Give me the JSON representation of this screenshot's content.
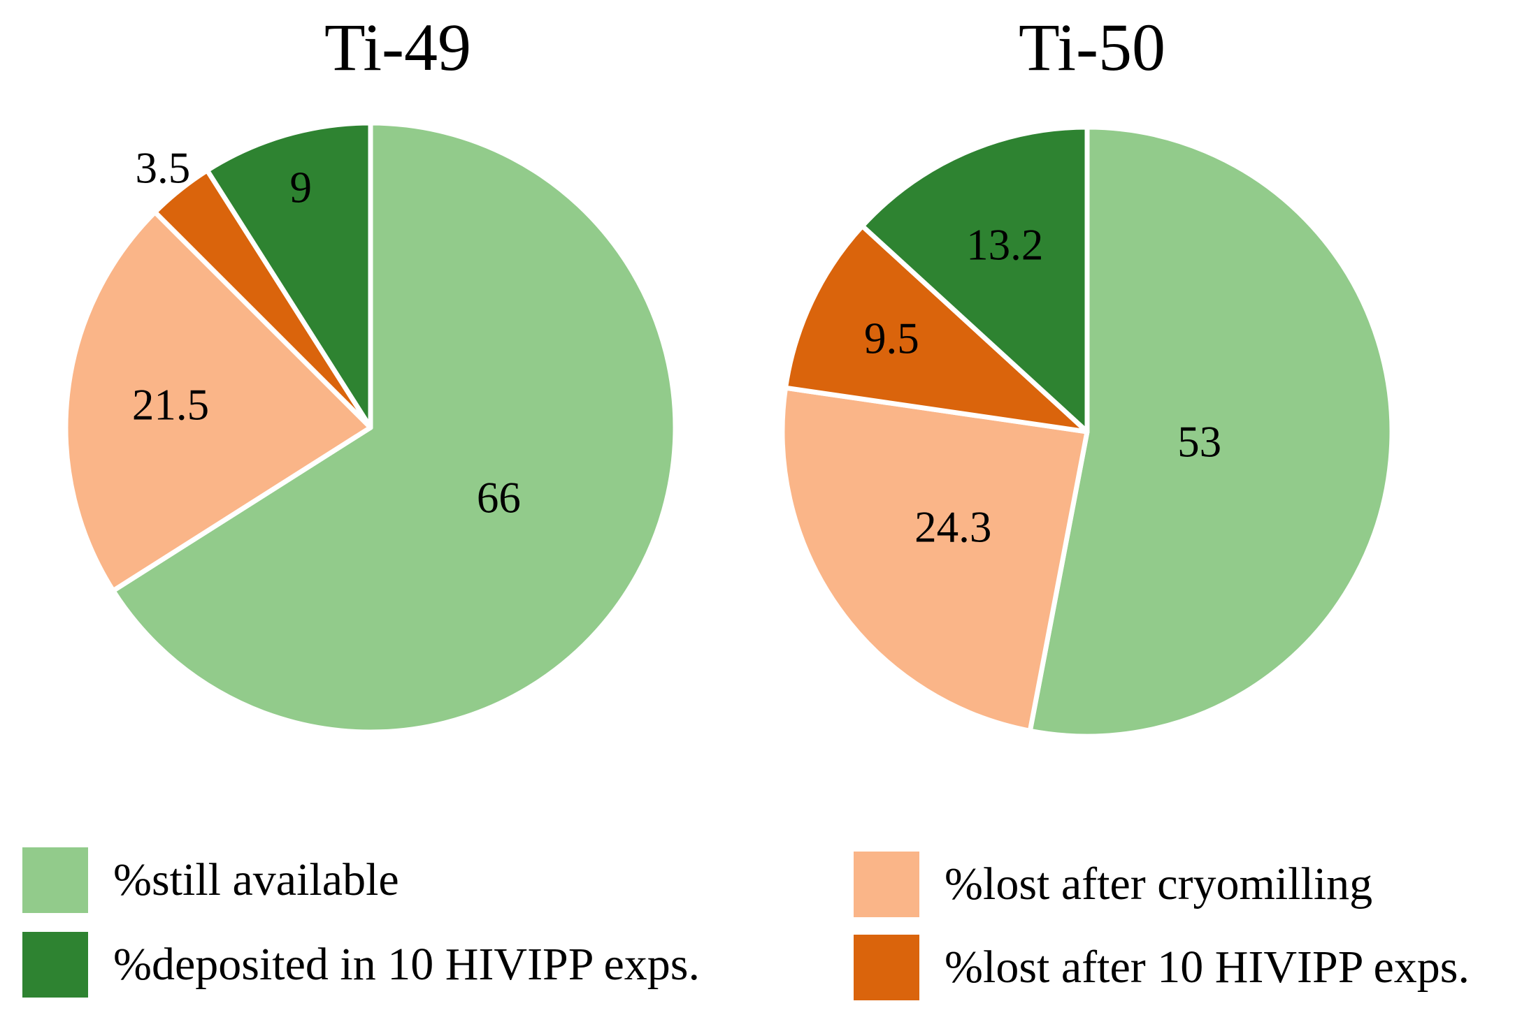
{
  "colors": {
    "light_green": "#92cb8b",
    "dark_green": "#2e8331",
    "peach": "#fab588",
    "dark_orange": "#da640c",
    "slice_divider": "#ffffff",
    "text": "#000000",
    "background": "#ffffff"
  },
  "chart_data": [
    {
      "type": "pie",
      "title": "Ti-49",
      "start_angle_deg_from_top": 0,
      "direction": "clockwise",
      "total": 100,
      "slices": [
        {
          "name": "%still available",
          "value": 66,
          "display": "66",
          "color_key": "light_green",
          "label_radius_frac": 0.48
        },
        {
          "name": "%lost after cryomilling",
          "value": 21.5,
          "display": "21.5",
          "color_key": "peach",
          "label_radius_frac": 0.66
        },
        {
          "name": "%lost after 10 HIVIPP exps.",
          "value": 3.5,
          "display": "3.5",
          "color_key": "dark_orange",
          "label_radius_frac": 1.09
        },
        {
          "name": "%deposited in 10 HIVIPP exps.",
          "value": 9,
          "display": "9",
          "color_key": "dark_green",
          "label_radius_frac": 0.82
        }
      ]
    },
    {
      "type": "pie",
      "title": "Ti-50",
      "start_angle_deg_from_top": 0,
      "direction": "clockwise",
      "total": 100,
      "slices": [
        {
          "name": "%still available",
          "value": 53,
          "display": "53",
          "color_key": "light_green",
          "label_radius_frac": 0.37
        },
        {
          "name": "%lost after cryomilling",
          "value": 24.3,
          "display": "24.3",
          "color_key": "peach",
          "label_radius_frac": 0.54
        },
        {
          "name": "%lost after 10 HIVIPP exps.",
          "value": 9.5,
          "display": "9.5",
          "color_key": "dark_orange",
          "label_radius_frac": 0.71
        },
        {
          "name": "%deposited in 10 HIVIPP exps.",
          "value": 13.2,
          "display": "13.2",
          "color_key": "dark_green",
          "label_radius_frac": 0.67
        }
      ]
    }
  ],
  "legend": {
    "items": [
      {
        "color_key": "light_green",
        "label": "%still available"
      },
      {
        "color_key": "dark_green",
        "label": "%deposited in 10 HIVIPP exps."
      },
      {
        "color_key": "peach",
        "label": "%lost after cryomilling"
      },
      {
        "color_key": "dark_orange",
        "label": "%lost after 10 HIVIPP exps."
      }
    ]
  }
}
